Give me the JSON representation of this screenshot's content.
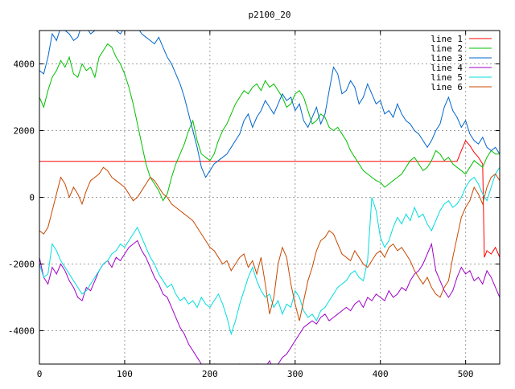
{
  "chart_data": {
    "type": "line",
    "title": "p2100_20",
    "xlabel": "",
    "ylabel": "",
    "xlim": [
      0,
      540
    ],
    "ylim": [
      -5000,
      5000
    ],
    "x_ticks": [
      0,
      100,
      200,
      300,
      400,
      500
    ],
    "y_ticks": [
      -4000,
      -2000,
      0,
      2000,
      4000
    ],
    "grid": true,
    "legend_position": "top-right",
    "series": [
      {
        "name": "line 1",
        "color": "#ff0000",
        "x": [
          0,
          440,
          490,
          495,
          500,
          505,
          510,
          515,
          520,
          522,
          525,
          530,
          535,
          540
        ],
        "y": [
          1080,
          1080,
          1080,
          1400,
          1700,
          1550,
          1350,
          1200,
          1000,
          -1800,
          -1600,
          -1700,
          -1500,
          -1800
        ]
      },
      {
        "name": "line 2",
        "color": "#00c000",
        "x": [
          0,
          5,
          10,
          15,
          20,
          25,
          30,
          35,
          40,
          45,
          50,
          55,
          60,
          65,
          70,
          75,
          80,
          85,
          90,
          95,
          100,
          105,
          110,
          115,
          120,
          125,
          130,
          135,
          140,
          145,
          150,
          155,
          160,
          165,
          170,
          175,
          180,
          185,
          190,
          195,
          200,
          205,
          210,
          215,
          220,
          225,
          230,
          235,
          240,
          245,
          250,
          255,
          260,
          265,
          270,
          275,
          280,
          285,
          290,
          295,
          300,
          305,
          310,
          315,
          320,
          325,
          330,
          335,
          340,
          345,
          350,
          355,
          360,
          365,
          370,
          375,
          380,
          385,
          390,
          395,
          400,
          405,
          410,
          415,
          420,
          425,
          430,
          435,
          440,
          445,
          450,
          455,
          460,
          465,
          470,
          475,
          480,
          485,
          490,
          495,
          500,
          505,
          510,
          515,
          520,
          525,
          530,
          535,
          540
        ],
        "y": [
          3000,
          2700,
          3200,
          3600,
          3800,
          4100,
          3900,
          4200,
          3700,
          3600,
          4000,
          3800,
          3900,
          3600,
          4200,
          4400,
          4600,
          4500,
          4200,
          4000,
          3700,
          3300,
          2800,
          2200,
          1600,
          1000,
          600,
          400,
          200,
          -100,
          100,
          600,
          1000,
          1300,
          1600,
          2000,
          2300,
          1700,
          1300,
          1200,
          1100,
          1300,
          1700,
          2000,
          2200,
          2500,
          2800,
          3000,
          3200,
          3100,
          3300,
          3400,
          3200,
          3500,
          3300,
          3400,
          3200,
          3000,
          2700,
          2800,
          3100,
          3200,
          3000,
          2600,
          2200,
          2300,
          2500,
          2400,
          2100,
          2000,
          2100,
          1900,
          1700,
          1400,
          1200,
          1000,
          800,
          700,
          600,
          500,
          450,
          300,
          400,
          500,
          600,
          700,
          900,
          1100,
          1200,
          1000,
          800,
          900,
          1100,
          1400,
          1300,
          1100,
          1200,
          1000,
          900,
          800,
          700,
          900,
          1100,
          1000,
          900,
          1200,
          1400,
          1300,
          1300
        ]
      },
      {
        "name": "line 3",
        "color": "#0066cc",
        "x": [
          0,
          5,
          10,
          15,
          20,
          25,
          30,
          35,
          40,
          45,
          50,
          55,
          60,
          65,
          70,
          75,
          80,
          85,
          90,
          95,
          100,
          105,
          110,
          115,
          120,
          125,
          130,
          135,
          140,
          145,
          150,
          155,
          160,
          165,
          170,
          175,
          180,
          185,
          190,
          195,
          200,
          205,
          210,
          215,
          220,
          225,
          230,
          235,
          240,
          245,
          250,
          255,
          260,
          265,
          270,
          275,
          280,
          285,
          290,
          295,
          300,
          305,
          310,
          315,
          320,
          325,
          330,
          335,
          340,
          345,
          350,
          355,
          360,
          365,
          370,
          375,
          380,
          385,
          390,
          395,
          400,
          405,
          410,
          415,
          420,
          425,
          430,
          435,
          440,
          445,
          450,
          455,
          460,
          465,
          470,
          475,
          480,
          485,
          490,
          495,
          500,
          505,
          510,
          515,
          520,
          525,
          530,
          535,
          540
        ],
        "y": [
          3800,
          3700,
          4200,
          4900,
          4700,
          5100,
          5000,
          4900,
          4700,
          4800,
          5200,
          5100,
          4900,
          5000,
          5300,
          5200,
          5100,
          5200,
          5000,
          4900,
          5100,
          5200,
          5000,
          5100,
          4900,
          4800,
          4700,
          4600,
          4800,
          4500,
          4200,
          4000,
          3700,
          3400,
          3000,
          2500,
          2000,
          1500,
          900,
          600,
          800,
          1000,
          1100,
          1200,
          1300,
          1500,
          1700,
          1900,
          2300,
          2500,
          2100,
          2400,
          2600,
          2900,
          2700,
          2500,
          2800,
          3100,
          2900,
          3000,
          2600,
          2800,
          2300,
          2100,
          2400,
          2700,
          2200,
          2500,
          3200,
          3900,
          3700,
          3100,
          3200,
          3500,
          3300,
          2800,
          3000,
          3400,
          3100,
          2800,
          2900,
          2500,
          2600,
          2400,
          2800,
          2500,
          2300,
          2200,
          2000,
          1900,
          1700,
          1500,
          1700,
          2000,
          2200,
          2700,
          3000,
          2600,
          2400,
          2100,
          2300,
          1900,
          1700,
          1600,
          1800,
          1500,
          1400,
          1500,
          1300
        ]
      },
      {
        "name": "line 4",
        "color": "#a000c8",
        "x": [
          0,
          5,
          10,
          15,
          20,
          25,
          30,
          35,
          40,
          45,
          50,
          55,
          60,
          65,
          70,
          75,
          80,
          85,
          90,
          95,
          100,
          105,
          110,
          115,
          120,
          125,
          130,
          135,
          140,
          145,
          150,
          155,
          160,
          165,
          170,
          175,
          180,
          185,
          190,
          195,
          200,
          205,
          210,
          215,
          220,
          225,
          230,
          235,
          240,
          245,
          250,
          255,
          260,
          265,
          270,
          275,
          280,
          285,
          290,
          295,
          300,
          305,
          310,
          315,
          320,
          325,
          330,
          335,
          340,
          345,
          350,
          355,
          360,
          365,
          370,
          375,
          380,
          385,
          390,
          395,
          400,
          405,
          410,
          415,
          420,
          425,
          430,
          435,
          440,
          445,
          450,
          455,
          460,
          465,
          470,
          475,
          480,
          485,
          490,
          495,
          500,
          505,
          510,
          515,
          520,
          525,
          530,
          535,
          540
        ],
        "y": [
          -1800,
          -2400,
          -2600,
          -2100,
          -2300,
          -2000,
          -2200,
          -2500,
          -2700,
          -3000,
          -3100,
          -2700,
          -2800,
          -2500,
          -2200,
          -2000,
          -1900,
          -2100,
          -1800,
          -1900,
          -1700,
          -1500,
          -1400,
          -1300,
          -1600,
          -1800,
          -2100,
          -2400,
          -2600,
          -2900,
          -3000,
          -3300,
          -3600,
          -3900,
          -4100,
          -4400,
          -4600,
          -4800,
          -5000,
          -5100,
          -5200,
          -5000,
          -5300,
          -5100,
          -5200,
          -5400,
          -5200,
          -5000,
          -5300,
          -5500,
          -5200,
          -5000,
          -5300,
          -5100,
          -4900,
          -5200,
          -5000,
          -4800,
          -4700,
          -4500,
          -4300,
          -4100,
          -3900,
          -3800,
          -3700,
          -3800,
          -3600,
          -3500,
          -3700,
          -3600,
          -3500,
          -3400,
          -3300,
          -3400,
          -3200,
          -3100,
          -3300,
          -3000,
          -3100,
          -2900,
          -3000,
          -3100,
          -2800,
          -3000,
          -2900,
          -2700,
          -2800,
          -2500,
          -2300,
          -2200,
          -2000,
          -1700,
          -1400,
          -2200,
          -2500,
          -2800,
          -3000,
          -2800,
          -2400,
          -2100,
          -2300,
          -2200,
          -2500,
          -2400,
          -2600,
          -2200,
          -2400,
          -2700,
          -3000
        ]
      },
      {
        "name": "line 5",
        "color": "#00dddd",
        "x": [
          0,
          5,
          10,
          15,
          20,
          25,
          30,
          35,
          40,
          45,
          50,
          55,
          60,
          65,
          70,
          75,
          80,
          85,
          90,
          95,
          100,
          105,
          110,
          115,
          120,
          125,
          130,
          135,
          140,
          145,
          150,
          155,
          160,
          165,
          170,
          175,
          180,
          185,
          190,
          195,
          200,
          205,
          210,
          215,
          220,
          225,
          230,
          235,
          240,
          245,
          250,
          255,
          260,
          265,
          270,
          275,
          280,
          285,
          290,
          295,
          300,
          305,
          310,
          315,
          320,
          325,
          330,
          335,
          340,
          345,
          350,
          355,
          360,
          365,
          370,
          375,
          380,
          385,
          390,
          395,
          400,
          405,
          410,
          415,
          420,
          425,
          430,
          435,
          440,
          445,
          450,
          455,
          460,
          465,
          470,
          475,
          480,
          485,
          490,
          495,
          500,
          505,
          510,
          515,
          520,
          525,
          530,
          535,
          540
        ],
        "y": [
          -2000,
          -2400,
          -2300,
          -1400,
          -1600,
          -1900,
          -2100,
          -2300,
          -2500,
          -2700,
          -2900,
          -2800,
          -2600,
          -2400,
          -2200,
          -2000,
          -1900,
          -1700,
          -1600,
          -1400,
          -1500,
          -1300,
          -1100,
          -900,
          -1200,
          -1500,
          -1800,
          -2000,
          -2300,
          -2500,
          -2700,
          -2600,
          -2900,
          -3100,
          -3000,
          -3200,
          -3100,
          -3300,
          -3000,
          -3200,
          -3300,
          -3100,
          -2900,
          -3200,
          -3600,
          -4100,
          -3700,
          -3200,
          -2800,
          -2400,
          -2100,
          -2500,
          -2800,
          -3000,
          -2900,
          -3300,
          -3100,
          -3500,
          -3200,
          -3300,
          -2800,
          -3000,
          -3400,
          -3600,
          -3500,
          -3700,
          -3400,
          -3300,
          -3100,
          -2900,
          -2700,
          -2600,
          -2500,
          -2300,
          -2200,
          -2400,
          -2500,
          -1900,
          0,
          -400,
          -1200,
          -1500,
          -1300,
          -900,
          -600,
          -800,
          -500,
          -700,
          -300,
          -600,
          -500,
          -800,
          -1000,
          -700,
          -400,
          -200,
          -100,
          -300,
          -200,
          0,
          300,
          500,
          600,
          400,
          100,
          -100,
          300,
          700,
          900
        ]
      },
      {
        "name": "line 6",
        "color": "#c84800",
        "x": [
          0,
          5,
          10,
          15,
          20,
          25,
          30,
          35,
          40,
          45,
          50,
          55,
          60,
          65,
          70,
          75,
          80,
          85,
          90,
          95,
          100,
          105,
          110,
          115,
          120,
          125,
          130,
          135,
          140,
          145,
          150,
          155,
          160,
          165,
          170,
          175,
          180,
          185,
          190,
          195,
          200,
          205,
          210,
          215,
          220,
          225,
          230,
          235,
          240,
          245,
          250,
          255,
          260,
          265,
          270,
          275,
          280,
          285,
          290,
          295,
          300,
          305,
          310,
          315,
          320,
          325,
          330,
          335,
          340,
          345,
          350,
          355,
          360,
          365,
          370,
          375,
          380,
          385,
          390,
          395,
          400,
          405,
          410,
          415,
          420,
          425,
          430,
          435,
          440,
          445,
          450,
          455,
          460,
          465,
          470,
          475,
          480,
          485,
          490,
          495,
          500,
          505,
          510,
          515,
          520,
          525,
          530,
          535,
          540
        ],
        "y": [
          -1000,
          -1100,
          -900,
          -400,
          100,
          600,
          400,
          0,
          300,
          100,
          -200,
          200,
          500,
          600,
          700,
          900,
          800,
          600,
          500,
          400,
          300,
          100,
          -100,
          0,
          200,
          400,
          600,
          500,
          300,
          100,
          0,
          -200,
          -300,
          -400,
          -500,
          -600,
          -700,
          -900,
          -1100,
          -1300,
          -1500,
          -1600,
          -1800,
          -2000,
          -1900,
          -2200,
          -2000,
          -1800,
          -1700,
          -2100,
          -1900,
          -2300,
          -1800,
          -2600,
          -3500,
          -3000,
          -2000,
          -1500,
          -1800,
          -2600,
          -3200,
          -3700,
          -3100,
          -2500,
          -2100,
          -1600,
          -1300,
          -1200,
          -1000,
          -1100,
          -1400,
          -1700,
          -1800,
          -1900,
          -1600,
          -1800,
          -2000,
          -2100,
          -1900,
          -1700,
          -1600,
          -1800,
          -1500,
          -1400,
          -1600,
          -1500,
          -1700,
          -1900,
          -2200,
          -2400,
          -2600,
          -2400,
          -2700,
          -2900,
          -3000,
          -2700,
          -2500,
          -1800,
          -1200,
          -600,
          -300,
          -100,
          300,
          100,
          -200,
          300,
          600,
          700,
          500
        ]
      }
    ]
  }
}
